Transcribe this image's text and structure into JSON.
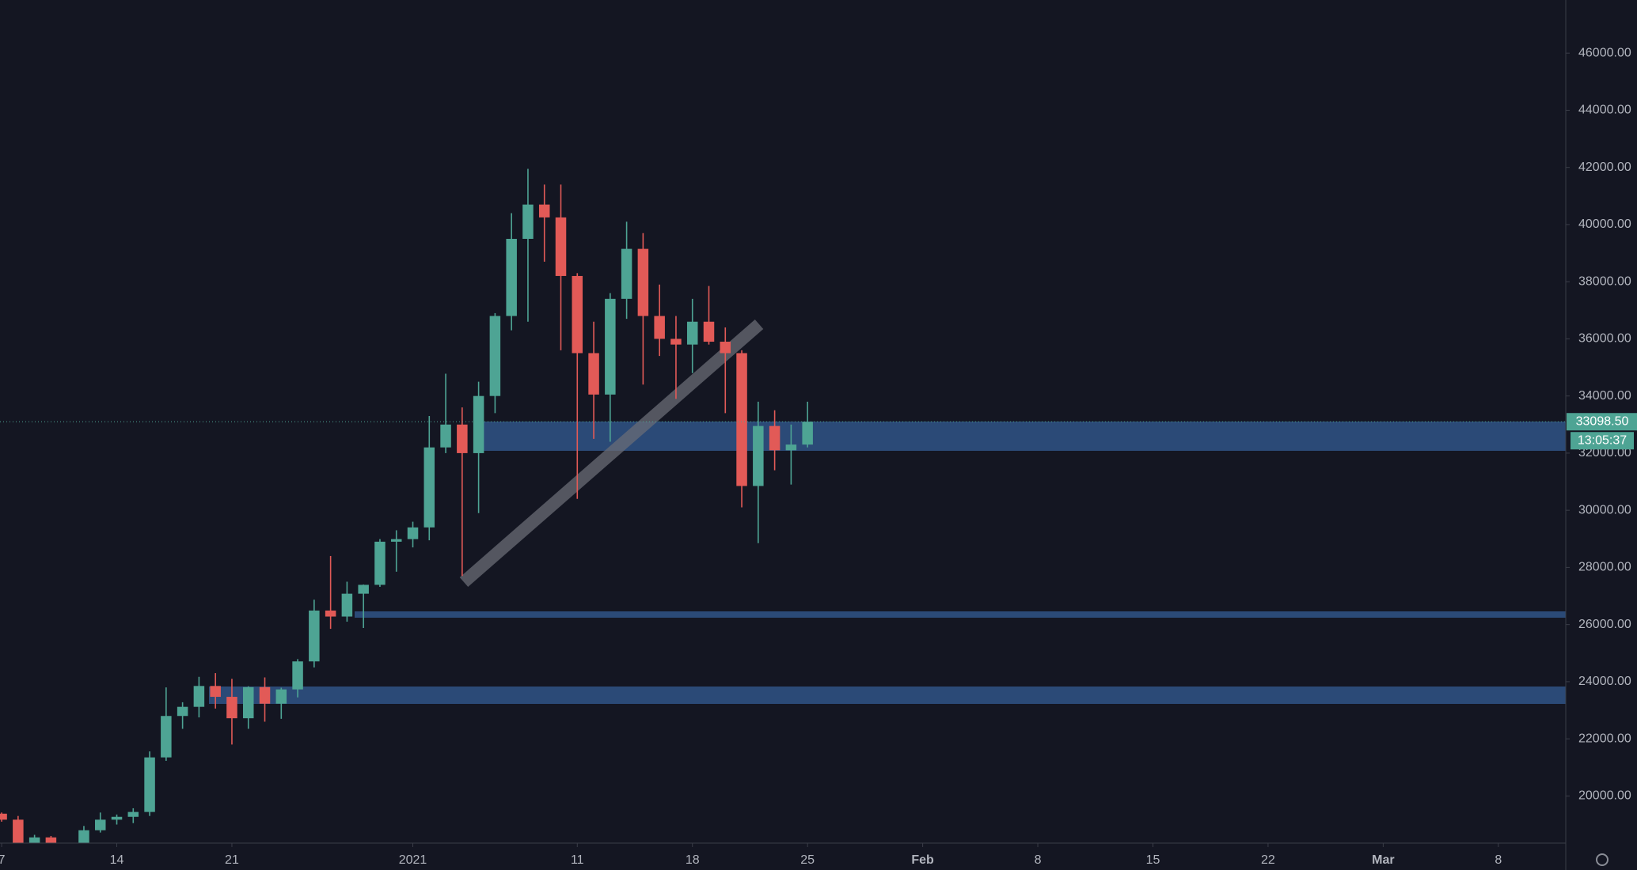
{
  "chart_data": {
    "type": "candlestick",
    "x": [
      0,
      1,
      2,
      3,
      5,
      6,
      7,
      8,
      9,
      10,
      11,
      12,
      13,
      14,
      15,
      16,
      17,
      18,
      19,
      20,
      21,
      22,
      23,
      24,
      25,
      26,
      27,
      28,
      29,
      30,
      31,
      32,
      33,
      34,
      35,
      36,
      37,
      38,
      39,
      40,
      41,
      42,
      43,
      44,
      45,
      46,
      47,
      48,
      49
    ],
    "open": [
      19380,
      19170,
      18330,
      18550,
      18040,
      18800,
      19170,
      19270,
      19440,
      21350,
      22800,
      23120,
      23850,
      23470,
      22720,
      23810,
      23230,
      23730,
      24710,
      26490,
      26280,
      27080,
      27390,
      28900,
      28990,
      29400,
      32200,
      33000,
      32000,
      34000,
      36800,
      39500,
      40700,
      40250,
      38200,
      35500,
      34050,
      37400,
      39150,
      36800,
      36000,
      35800,
      36600,
      35900,
      35500,
      30850,
      32950,
      32100,
      32300
    ],
    "high": [
      19420,
      19300,
      18640,
      18600,
      18950,
      19420,
      19350,
      19570,
      21560,
      23800,
      23280,
      24170,
      24300,
      24100,
      23840,
      24150,
      23790,
      24790,
      26870,
      28400,
      27500,
      27400,
      28990,
      29300,
      29600,
      33300,
      34780,
      33600,
      34500,
      36900,
      40400,
      41950,
      41400,
      41400,
      38300,
      36600,
      37600,
      40100,
      39700,
      37900,
      36800,
      37400,
      37850,
      36400,
      35600,
      33800,
      33500,
      33000,
      33800
    ],
    "low": [
      19100,
      18200,
      17650,
      18130,
      18020,
      18720,
      19000,
      19050,
      19300,
      21230,
      22350,
      22750,
      23060,
      21800,
      22350,
      22600,
      22700,
      23450,
      24500,
      25850,
      26100,
      25880,
      27320,
      27850,
      28700,
      28950,
      32000,
      27700,
      29900,
      33400,
      36300,
      36600,
      38700,
      35600,
      30400,
      32500,
      32400,
      36700,
      34400,
      35400,
      33900,
      34800,
      35800,
      33400,
      30100,
      28850,
      31400,
      30900,
      32200
    ],
    "close": [
      19170,
      18330,
      18550,
      18250,
      18800,
      19170,
      19270,
      19440,
      21350,
      22800,
      23120,
      23850,
      23470,
      22720,
      23810,
      23230,
      23730,
      24710,
      26490,
      26280,
      27080,
      27390,
      28900,
      28990,
      29400,
      32200,
      33000,
      32000,
      34000,
      36800,
      39500,
      40700,
      40250,
      38200,
      35500,
      34050,
      37400,
      39150,
      36800,
      36000,
      35800,
      36600,
      35900,
      35500,
      30850,
      32950,
      32100,
      32300,
      33098.5
    ],
    "up_color": "#4ea494",
    "down_color": "#e25a57",
    "xlim": [
      -0.1,
      95.1
    ],
    "xticks": [
      {
        "value": 0,
        "label": "7"
      },
      {
        "value": 7,
        "label": "14"
      },
      {
        "value": 14,
        "label": "21"
      },
      {
        "value": 25,
        "label": "2021"
      },
      {
        "value": 35,
        "label": "11"
      },
      {
        "value": 42,
        "label": "18"
      },
      {
        "value": 49,
        "label": "25"
      },
      {
        "value": 56,
        "label": "Feb"
      },
      {
        "value": 63,
        "label": "8"
      },
      {
        "value": 70,
        "label": "15"
      },
      {
        "value": 77,
        "label": "22"
      },
      {
        "value": 84,
        "label": "Mar"
      },
      {
        "value": 91,
        "label": "8"
      }
    ],
    "ylim": [
      18350,
      47860
    ],
    "yticks": [
      {
        "value": 20000,
        "label": "20000.00"
      },
      {
        "value": 22000,
        "label": "22000.00"
      },
      {
        "value": 24000,
        "label": "24000.00"
      },
      {
        "value": 26000,
        "label": "26000.00"
      },
      {
        "value": 28000,
        "label": "28000.00"
      },
      {
        "value": 30000,
        "label": "30000.00"
      },
      {
        "value": 32000,
        "label": "32000.00"
      },
      {
        "value": 34000,
        "label": "34000.00"
      },
      {
        "value": 36000,
        "label": "36000.00"
      },
      {
        "value": 38000,
        "label": "38000.00"
      },
      {
        "value": 40000,
        "label": "40000.00"
      },
      {
        "value": 42000,
        "label": "42000.00"
      },
      {
        "value": 44000,
        "label": "44000.00"
      },
      {
        "value": 46000,
        "label": "46000.00"
      }
    ],
    "last_price": 33098.5,
    "last_price_label": "33098.50",
    "countdown": "13:05:37"
  }
}
